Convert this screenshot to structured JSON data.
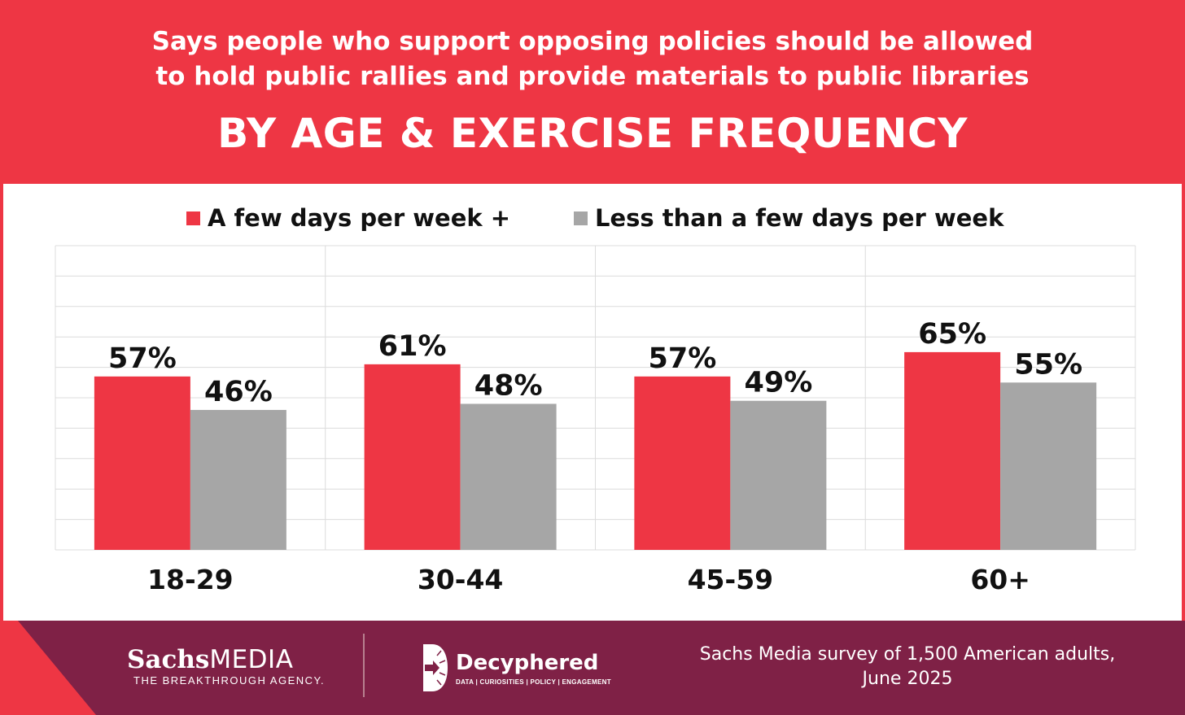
{
  "header": {
    "subtitle_line1": "Says people who support opposing policies should be allowed",
    "subtitle_line2": "to hold public rallies and provide materials to public libraries",
    "title": "BY AGE & EXERCISE FREQUENCY"
  },
  "colors": {
    "brand_red": "#ee3644",
    "bar_gray": "#a6a6a6",
    "footer_maroon": "#7f2146",
    "footer_triangle": "#ee3644"
  },
  "chart_data": {
    "type": "bar",
    "title": "BY AGE & EXERCISE FREQUENCY",
    "categories": [
      "18-29",
      "30-44",
      "45-59",
      "60+"
    ],
    "series": [
      {
        "name": "A few days per week +",
        "values": [
          57,
          61,
          57,
          65
        ],
        "labels": [
          "57%",
          "61%",
          "57%",
          "65%"
        ],
        "color": "#ee3644"
      },
      {
        "name": "Less than a few days per week",
        "values": [
          46,
          48,
          49,
          55
        ],
        "labels": [
          "46%",
          "48%",
          "49%",
          "55%"
        ],
        "color": "#a6a6a6"
      }
    ],
    "ylim": [
      0,
      100
    ],
    "grid": true,
    "legend": "top"
  },
  "footer": {
    "sachs_name": "Sachs",
    "sachs_media": "MEDIA",
    "sachs_tagline": "THE BREAKTHROUGH AGENCY.",
    "decyphered_name": "Decyphered",
    "decyphered_tagline": "DATA | CURIOSITIES | POLICY | ENGAGEMENT",
    "source_line1": "Sachs Media survey of 1,500 American adults,",
    "source_line2": "June 2025"
  }
}
